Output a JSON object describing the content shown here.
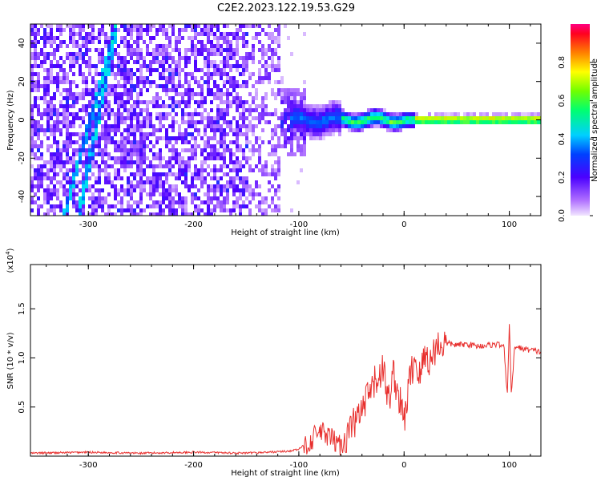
{
  "title": "C2E2.2023.122.19.53.G29",
  "colors": {
    "snr_line": "#e8302e",
    "spectrogram_low": "#e6d8ff",
    "spectrogram_mid": "#6a00ff",
    "spectrogram_high": "#ff0033"
  },
  "chart_data": [
    {
      "type": "heatmap",
      "name": "spectrogram",
      "xlabel": "Height of straight line (km)",
      "ylabel": "Frequency (Hz)",
      "xlim": [
        -355,
        130
      ],
      "ylim": [
        -50,
        50
      ],
      "x_ticks": [
        -300,
        -200,
        -100,
        0,
        100
      ],
      "y_ticks": [
        -40,
        -20,
        0,
        20,
        40
      ],
      "colorbar": {
        "label": "Normalized spectral amplitude",
        "range": [
          0.0,
          1.0
        ],
        "ticks": [
          0.0,
          0.2,
          0.4,
          0.6,
          0.8
        ],
        "colormap": "rainbow"
      },
      "features": [
        {
          "description_of": "diagonal streak",
          "from": [
            -320,
            -40
          ],
          "to": [
            -275,
            50
          ]
        },
        {
          "description_of": "diagonal streak",
          "from": [
            -300,
            -20
          ],
          "to": [
            -275,
            50
          ]
        },
        {
          "description_of": "carrier line at ~1 Hz",
          "from": [
            -100,
            1
          ],
          "to": [
            130,
            1
          ]
        }
      ]
    },
    {
      "type": "line",
      "name": "snr",
      "xlabel": "Height of straight line (km)",
      "ylabel": "SNR (10 * v/v)",
      "y_multiplier": "(x10",
      "y_multiplier_exp": "4",
      "y_multiplier_close": ")",
      "xlim": [
        -355,
        130
      ],
      "ylim": [
        0,
        1.95
      ],
      "x_ticks": [
        -300,
        -200,
        -100,
        0,
        100
      ],
      "y_ticks": [
        0.5,
        1.0,
        1.5
      ],
      "series": [
        {
          "x": [
            -355,
            -300,
            -250,
            -200,
            -150,
            -110,
            -100,
            -90,
            -80,
            -70,
            -60,
            -50,
            -40,
            -30,
            -20,
            -15,
            -10,
            -5,
            0,
            5,
            10,
            15,
            20,
            25,
            30,
            40,
            50,
            60,
            70,
            80,
            90,
            95,
            98,
            100,
            102,
            105,
            110,
            120,
            130
          ],
          "y": [
            0.03,
            0.04,
            0.03,
            0.04,
            0.03,
            0.05,
            0.07,
            0.15,
            0.25,
            0.18,
            0.1,
            0.3,
            0.45,
            0.7,
            0.9,
            0.55,
            0.85,
            0.6,
            0.35,
            0.75,
            1.0,
            0.8,
            1.05,
            0.95,
            1.12,
            1.15,
            1.13,
            1.14,
            1.12,
            1.13,
            1.14,
            1.1,
            0.6,
            1.35,
            0.6,
            1.12,
            1.1,
            1.08,
            1.06
          ]
        }
      ]
    }
  ]
}
